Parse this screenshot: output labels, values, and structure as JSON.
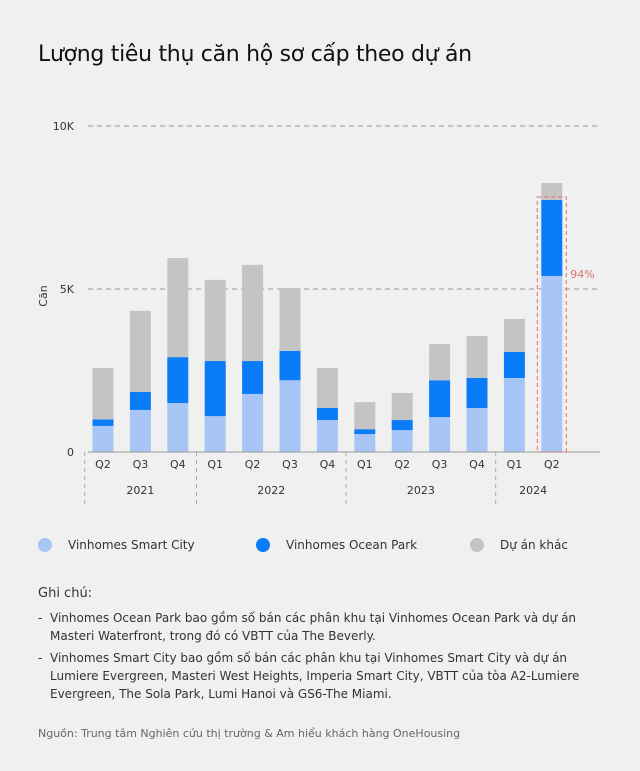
{
  "chart_data": {
    "type": "bar",
    "stacked": true,
    "title": "Lượng tiêu thụ căn hộ sơ cấp theo dự án",
    "ylabel": "Căn",
    "ylim": [
      0,
      10000
    ],
    "yticks": [
      "0",
      "5K",
      "10K"
    ],
    "ytick_values": [
      0,
      5000,
      10000
    ],
    "grid": "dashed at 5K and 10K",
    "categories": [
      "Q2",
      "Q3",
      "Q4",
      "Q1",
      "Q2",
      "Q3",
      "Q4",
      "Q1",
      "Q2",
      "Q3",
      "Q4",
      "Q1",
      "Q2"
    ],
    "years": [
      {
        "label": "2021",
        "count": 3
      },
      {
        "label": "2022",
        "count": 4
      },
      {
        "label": "2023",
        "count": 4
      },
      {
        "label": "2024",
        "count": 2
      }
    ],
    "series": [
      {
        "name": "Vinhomes Smart City",
        "color": "#a8c6f5",
        "values": [
          800,
          1290,
          1500,
          1100,
          1780,
          2200,
          980,
          550,
          670,
          1070,
          1350,
          2270,
          5400
        ]
      },
      {
        "name": "Vinhomes Ocean Park",
        "color": "#0a7cf7",
        "values": [
          200,
          550,
          1410,
          1690,
          1010,
          900,
          370,
          150,
          310,
          1130,
          920,
          800,
          2330
        ]
      },
      {
        "name": "Dự án khác",
        "color": "#c4c4c4",
        "values": [
          1580,
          2490,
          3040,
          2490,
          2950,
          1930,
          1230,
          830,
          830,
          1110,
          1290,
          1010,
          520
        ]
      }
    ],
    "annotation": {
      "label": "94%",
      "category_index": 12,
      "color": "#d9706f"
    },
    "legend_position": "bottom"
  },
  "notes": {
    "heading": "Ghi chú:",
    "items": [
      "Vinhomes Ocean Park bao gồm số bán các phân khu tại Vinhomes Ocean Park và dự án Masteri Waterfront, trong đó có VBTT của The Beverly.",
      "Vinhomes Smart City bao gồm số bán các phân khu tại Vinhomes Smart City và dự án Lumiere Evergreen, Masteri West Heights, Imperia Smart City, VBTT của tòa A2-Lumiere Evergreen, The Sola Park, Lumi Hanoi và GS6-The Miami."
    ]
  },
  "source": "Nguồn: Trung tâm Nghiên cứu thị trường & Am hiểu khách hàng OneHousing"
}
